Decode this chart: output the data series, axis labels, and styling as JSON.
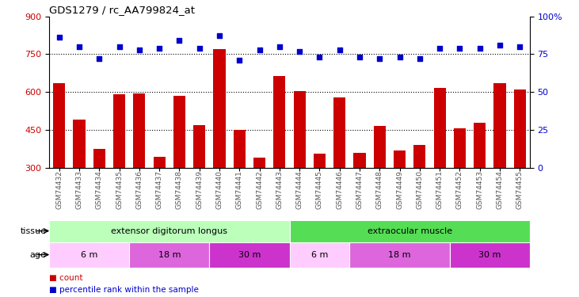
{
  "title": "GDS1279 / rc_AA799824_at",
  "samples": [
    "GSM74432",
    "GSM74433",
    "GSM74434",
    "GSM74435",
    "GSM74436",
    "GSM74437",
    "GSM74438",
    "GSM74439",
    "GSM74440",
    "GSM74441",
    "GSM74442",
    "GSM74443",
    "GSM74444",
    "GSM74445",
    "GSM74446",
    "GSM74447",
    "GSM74448",
    "GSM74449",
    "GSM74450",
    "GSM74451",
    "GSM74452",
    "GSM74453",
    "GSM74454",
    "GSM74455"
  ],
  "counts": [
    635,
    490,
    375,
    590,
    595,
    345,
    585,
    470,
    770,
    450,
    340,
    665,
    605,
    355,
    580,
    360,
    465,
    370,
    390,
    615,
    455,
    480,
    635,
    610
  ],
  "percentiles": [
    86,
    80,
    72,
    80,
    78,
    79,
    84,
    79,
    87,
    71,
    78,
    80,
    77,
    73,
    78,
    73,
    72,
    73,
    72,
    79,
    79,
    79,
    81,
    80
  ],
  "bar_color": "#cc0000",
  "dot_color": "#0000cc",
  "ylim_left": [
    300,
    900
  ],
  "ylim_right": [
    0,
    100
  ],
  "yticks_left": [
    300,
    450,
    600,
    750,
    900
  ],
  "yticks_right": [
    0,
    25,
    50,
    75,
    100
  ],
  "tissue_groups": [
    {
      "label": "extensor digitorum longus",
      "start": 0,
      "end": 12,
      "color": "#bbffbb"
    },
    {
      "label": "extraocular muscle",
      "start": 12,
      "end": 24,
      "color": "#55dd55"
    }
  ],
  "age_groups": [
    {
      "label": "6 m",
      "start": 0,
      "end": 4,
      "color": "#ffccff"
    },
    {
      "label": "18 m",
      "start": 4,
      "end": 8,
      "color": "#dd66dd"
    },
    {
      "label": "30 m",
      "start": 8,
      "end": 12,
      "color": "#cc33cc"
    },
    {
      "label": "6 m",
      "start": 12,
      "end": 15,
      "color": "#ffccff"
    },
    {
      "label": "18 m",
      "start": 15,
      "end": 20,
      "color": "#dd66dd"
    },
    {
      "label": "30 m",
      "start": 20,
      "end": 24,
      "color": "#cc33cc"
    }
  ],
  "bg_color": "#ffffff",
  "bar_color_hex": "#cc0000",
  "dot_color_hex": "#0000cc",
  "xlabel_color": "#cc0000",
  "ylabel_right_color": "#0000cc",
  "tick_label_color": "#555555",
  "legend_count_label": "count",
  "legend_pct_label": "percentile rank within the sample",
  "tissue_label": "tissue",
  "age_label": "age"
}
